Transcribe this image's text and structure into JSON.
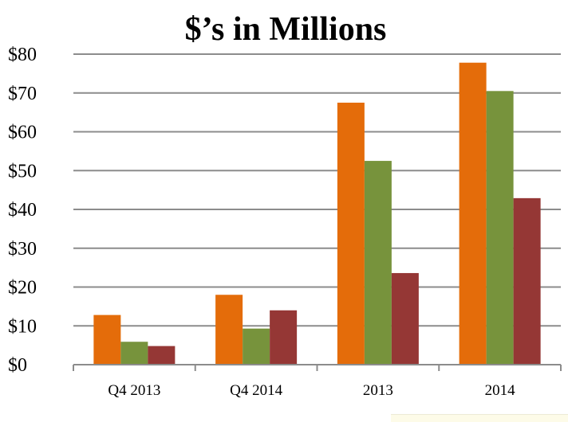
{
  "chart_data": {
    "type": "bar",
    "title": "$’s in Millions",
    "xlabel": "",
    "ylabel": "",
    "categories": [
      "Q4 2013",
      "Q4 2014",
      "2013",
      "2014"
    ],
    "series": [
      {
        "color": "#e46c0a",
        "values": [
          12.8,
          18.0,
          67.5,
          77.8
        ]
      },
      {
        "color": "#77933c",
        "values": [
          5.9,
          9.3,
          52.5,
          70.5
        ]
      },
      {
        "color": "#953735",
        "values": [
          4.8,
          14.0,
          23.6,
          42.9
        ]
      }
    ],
    "ylim": [
      0,
      80
    ],
    "yticks": [
      0,
      10,
      20,
      30,
      40,
      50,
      60,
      70,
      80
    ],
    "ytick_labels": [
      "$0",
      "$10",
      "$20",
      "$30",
      "$40",
      "$50",
      "$60",
      "$70",
      "$80"
    ],
    "grid": true,
    "legend": "none"
  }
}
